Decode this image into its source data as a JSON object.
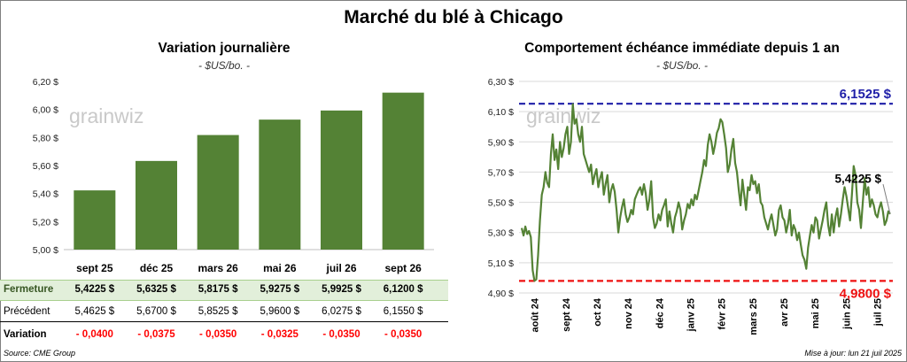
{
  "title": "Marché du blé à Chicago",
  "source": "Source: CME Group",
  "updated": "Mise à jour: lun 21 juil 2025",
  "watermark": "grainwiz",
  "table": {
    "close_label": "Fermeture",
    "prev_label": "Précédent",
    "var_label": "Variation",
    "close": [
      "5,4225  $",
      "5,6325  $",
      "5,8175  $",
      "5,9275  $",
      "5,9925  $",
      "6,1200  $"
    ],
    "prev": [
      "5,4625  $",
      "5,6700  $",
      "5,8525  $",
      "5,9600  $",
      "6,0275  $",
      "6,1550  $"
    ],
    "var": [
      "- 0,0400",
      "- 0,0375",
      "- 0,0350",
      "- 0,0325",
      "- 0,0350",
      "- 0,0350"
    ]
  },
  "chart_data": [
    {
      "type": "bar",
      "title": "Variation journalière",
      "subtitle": "- $US/bo. -",
      "categories": [
        "sept 25",
        "déc 25",
        "mars 26",
        "mai 26",
        "juil 26",
        "sept 26"
      ],
      "values": [
        5.4225,
        5.6325,
        5.8175,
        5.9275,
        5.9925,
        6.12
      ],
      "ylim": [
        5.0,
        6.2
      ],
      "yticks": [
        "5,00 $",
        "5,20 $",
        "5,40 $",
        "5,60 $",
        "5,80 $",
        "6,00 $",
        "6,20 $"
      ],
      "grid": false,
      "color": "#548235"
    },
    {
      "type": "line",
      "title": "Comportement échéance immédiate depuis 1 an",
      "subtitle": "- $US/bo. -",
      "x_labels": [
        "août 24",
        "sept 24",
        "oct 24",
        "nov 24",
        "déc 24",
        "janv 25",
        "févr 25",
        "mars 25",
        "avr 25",
        "mai 25",
        "juin 25",
        "juil 25"
      ],
      "ylim": [
        4.9,
        6.3
      ],
      "yticks": [
        "4,90 $",
        "5,10 $",
        "5,30 $",
        "5,50 $",
        "5,70 $",
        "5,90 $",
        "6,10 $",
        "6,30 $"
      ],
      "grid": true,
      "color": "#548235",
      "values": [
        5.33,
        5.28,
        5.34,
        5.29,
        5.31,
        5.27,
        5.05,
        4.98,
        4.99,
        5.15,
        5.38,
        5.55,
        5.6,
        5.7,
        5.63,
        5.6,
        5.82,
        5.95,
        5.78,
        5.85,
        5.72,
        5.9,
        5.8,
        5.86,
        5.95,
        6.0,
        5.82,
        5.9,
        6.15,
        6.02,
        6.05,
        5.95,
        5.9,
        6.0,
        5.82,
        5.78,
        5.74,
        5.7,
        5.75,
        5.62,
        5.68,
        5.72,
        5.6,
        5.66,
        5.7,
        5.55,
        5.62,
        5.68,
        5.5,
        5.58,
        5.62,
        5.57,
        5.45,
        5.3,
        5.4,
        5.47,
        5.52,
        5.42,
        5.37,
        5.4,
        5.45,
        5.42,
        5.52,
        5.55,
        5.58,
        5.6,
        5.55,
        5.62,
        5.56,
        5.45,
        5.52,
        5.64,
        5.4,
        5.33,
        5.36,
        5.42,
        5.38,
        5.45,
        5.48,
        5.52,
        5.34,
        5.44,
        5.36,
        5.3,
        5.4,
        5.44,
        5.5,
        5.45,
        5.32,
        5.38,
        5.42,
        5.49,
        5.46,
        5.52,
        5.48,
        5.55,
        5.52,
        5.58,
        5.64,
        5.7,
        5.78,
        5.74,
        5.88,
        5.95,
        5.9,
        5.82,
        5.88,
        5.96,
        5.99,
        6.05,
        6.03,
        5.95,
        5.86,
        5.7,
        5.75,
        5.85,
        5.92,
        5.76,
        5.7,
        5.58,
        5.48,
        5.65,
        5.55,
        5.45,
        5.6,
        5.58,
        5.68,
        5.62,
        5.64,
        5.56,
        5.62,
        5.5,
        5.48,
        5.4,
        5.36,
        5.32,
        5.38,
        5.42,
        5.35,
        5.28,
        5.32,
        5.45,
        5.48,
        5.4,
        5.38,
        5.3,
        5.36,
        5.45,
        5.28,
        5.35,
        5.32,
        5.25,
        5.3,
        5.22,
        5.15,
        5.12,
        5.06,
        5.2,
        5.28,
        5.35,
        5.3,
        5.4,
        5.38,
        5.26,
        5.32,
        5.38,
        5.45,
        5.5,
        5.35,
        5.28,
        5.42,
        5.3,
        5.4,
        5.46,
        5.34,
        5.42,
        5.52,
        5.6,
        5.54,
        5.46,
        5.38,
        5.55,
        5.74,
        5.68,
        5.5,
        5.45,
        5.33,
        5.5,
        5.66,
        5.55,
        5.6,
        5.47,
        5.52,
        5.48,
        5.42,
        5.4,
        5.46,
        5.5,
        5.44,
        5.35,
        5.38,
        5.44,
        5.4225
      ],
      "lines": [
        {
          "label": "6,1525 $",
          "value": 6.1525,
          "color": "#1f1fa8"
        },
        {
          "label": "4,9800 $",
          "value": 4.98,
          "color": "#ee1111"
        }
      ],
      "last_label": "5,4225 $"
    }
  ]
}
